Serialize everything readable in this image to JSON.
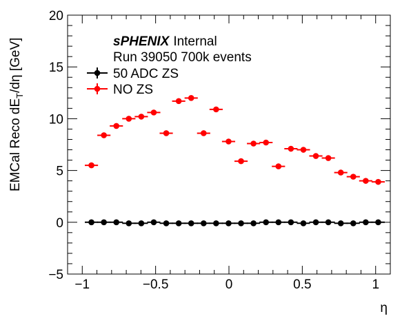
{
  "chart_data": {
    "type": "scatter",
    "xlabel": "η",
    "ylabel_parts": [
      "EMCal Reco dE",
      "T",
      "/dη [GeV]"
    ],
    "xlim": [
      -1.1,
      1.1
    ],
    "ylim": [
      -5,
      20
    ],
    "x_ticks": [
      -1,
      -0.5,
      0,
      0.5,
      1
    ],
    "x_tick_labels": [
      "−1",
      "−0.5",
      "0",
      "0.5",
      "1"
    ],
    "y_ticks": [
      -5,
      0,
      5,
      10,
      15,
      20
    ],
    "y_tick_labels": [
      "−5",
      "0",
      "5",
      "10",
      "15",
      "20"
    ],
    "bin_half_width": 0.045,
    "series": [
      {
        "name": "50 ADC ZS",
        "color": "#000000",
        "x": [
          -0.9375,
          -0.8525,
          -0.7675,
          -0.6825,
          -0.5975,
          -0.5125,
          -0.4275,
          -0.3425,
          -0.2575,
          -0.1725,
          -0.0875,
          -0.0025,
          0.0825,
          0.1675,
          0.2525,
          0.3375,
          0.4225,
          0.5075,
          0.5925,
          0.6775,
          0.7625,
          0.8475,
          0.9325,
          1.0175
        ],
        "values": [
          0.0,
          0.0,
          0.0,
          -0.1,
          -0.1,
          0.0,
          -0.1,
          -0.1,
          -0.1,
          -0.1,
          -0.1,
          -0.1,
          -0.1,
          -0.1,
          0.0,
          0.0,
          0.0,
          -0.1,
          0.0,
          0.0,
          -0.1,
          -0.1,
          0.0,
          0.0
        ]
      },
      {
        "name": "NO ZS",
        "color": "#ff0000",
        "x": [
          -0.9375,
          -0.8525,
          -0.7675,
          -0.6825,
          -0.5975,
          -0.5125,
          -0.4275,
          -0.3425,
          -0.2575,
          -0.1725,
          -0.0875,
          -0.0025,
          0.0825,
          0.1675,
          0.2525,
          0.3375,
          0.4225,
          0.5075,
          0.5925,
          0.6775,
          0.7625,
          0.8475,
          0.9325,
          1.0175
        ],
        "values": [
          5.5,
          8.4,
          9.3,
          10.0,
          10.2,
          10.6,
          8.6,
          11.7,
          12.0,
          8.6,
          10.9,
          7.8,
          5.9,
          7.6,
          7.7,
          5.4,
          7.1,
          7.0,
          6.4,
          6.2,
          4.8,
          4.4,
          4.0,
          3.9
        ]
      }
    ],
    "annotations": {
      "experiment": "sPHENIX",
      "status": "Internal",
      "run_info": "Run 39050 700k events"
    },
    "legend_placement": "top-left",
    "grid": false
  }
}
